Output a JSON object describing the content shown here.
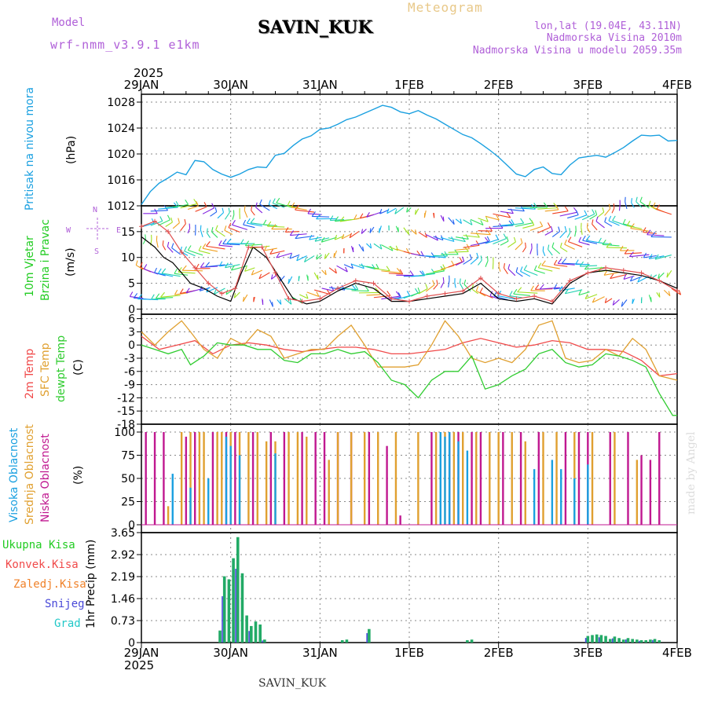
{
  "header": {
    "meteogram_label": "Meteogram",
    "station": "SAVIN_KUK",
    "model_caption": "Model",
    "model_name": "wrf-nmm_v3.9.1 e1km",
    "lonlat": "lon,lat (19.04E, 43.11N)",
    "elevation": "Nadmorska Visina 2010m",
    "model_elevation": "Nadmorska Visina u modelu 2059.35m",
    "footer_station": "SAVIN_KUK",
    "watermark": "made by Angel"
  },
  "time_axis": {
    "year": "2025",
    "ticks": [
      "29JAN",
      "30JAN",
      "31JAN",
      "1FEB",
      "2FEB",
      "3FEB",
      "4FEB"
    ]
  },
  "panel_labels": {
    "pressure": {
      "name": "Pritisak na nivou mora",
      "unit": "(hPa)"
    },
    "wind": {
      "line1": "10m Vjetar",
      "line2": "Brzina i Pravac",
      "unit": "(m/s)",
      "compass": [
        "N",
        "E",
        "S",
        "W"
      ]
    },
    "temp": {
      "t2m": "2m Temp",
      "sfc": "SFC Temp",
      "dew": "dewpt Temp",
      "unit": "(C)"
    },
    "cloud": {
      "high": "Visoka Oblacnost",
      "mid": "Srednja Oblacnost",
      "low": "Niska Oblacnost",
      "unit": "(%)"
    },
    "precip": {
      "total": "Ukupna Kisa",
      "conv": "Konvek.Kisa",
      "frozen": "Zaledj.Kisa",
      "snow": "Snijeg",
      "graupel": "Grad",
      "unit": "1hr Precip (mm)"
    }
  },
  "colors": {
    "pressure": "#1aa0e0",
    "t2m": "#f04a4a",
    "sfc": "#e0a030",
    "dew": "#30cc30",
    "high_cloud": "#1aa0e0",
    "mid_cloud": "#e0a030",
    "low_cloud": "#c01890",
    "wind_speed": "#000000",
    "wind_gust": "#e05050",
    "label_purple": "#b060d8",
    "green": "#22cc22",
    "red": "#f04a4a",
    "orange": "#f0822a",
    "blue": "#4848d8",
    "cyan": "#22c8c8"
  },
  "chart_data": [
    {
      "type": "line",
      "name": "pressure",
      "ylabel": "(hPa)",
      "ylim": [
        1012,
        1028
      ],
      "yticks": [
        "1012",
        "1016",
        "1020",
        "1024",
        "1028"
      ],
      "grid": true,
      "x_days": [
        0,
        0.1,
        0.2,
        0.3,
        0.4,
        0.5,
        0.6,
        0.7,
        0.8,
        0.9,
        1.0,
        1.1,
        1.2,
        1.3,
        1.4,
        1.5,
        1.6,
        1.7,
        1.8,
        1.9,
        2.0,
        2.1,
        2.2,
        2.3,
        2.4,
        2.5,
        2.6,
        2.7,
        2.8,
        2.9,
        3.0,
        3.1,
        3.2,
        3.3,
        3.4,
        3.5,
        3.6,
        3.7,
        3.8,
        3.9,
        4.0,
        4.1,
        4.2,
        4.3,
        4.4,
        4.5,
        4.6,
        4.7,
        4.8,
        4.9,
        5.0,
        5.1,
        5.2,
        5.3,
        5.4,
        5.5,
        5.6,
        5.7,
        5.8,
        5.9,
        6.0
      ],
      "values": [
        1012.2,
        1014.2,
        1015.5,
        1016.3,
        1017.2,
        1016.8,
        1019.0,
        1018.8,
        1017.6,
        1016.9,
        1016.4,
        1016.9,
        1017.6,
        1018.0,
        1017.9,
        1019.8,
        1020.1,
        1021.3,
        1022.3,
        1022.8,
        1023.8,
        1024.0,
        1024.6,
        1025.3,
        1025.7,
        1026.3,
        1026.9,
        1027.5,
        1027.2,
        1026.5,
        1026.2,
        1026.7,
        1026.0,
        1025.4,
        1024.6,
        1023.8,
        1023.0,
        1022.5,
        1021.6,
        1020.6,
        1019.5,
        1018.2,
        1016.9,
        1016.5,
        1017.6,
        1018.0,
        1017.0,
        1016.8,
        1018.3,
        1019.4,
        1019.6,
        1019.8,
        1019.5,
        1020.2,
        1021.0,
        1022.0,
        1022.9,
        1022.8,
        1022.9,
        1022.0,
        1022.1
      ]
    },
    {
      "type": "line",
      "name": "wind",
      "ylabel": "(m/s)",
      "ylim": [
        -1,
        20
      ],
      "yticks": [
        "0",
        "5",
        "10",
        "15"
      ],
      "series": [
        {
          "key": "wind_speed",
          "color": "#000000",
          "x_days": [
            0,
            0.15,
            0.25,
            0.35,
            0.45,
            0.55,
            0.7,
            0.85,
            1.0,
            1.12,
            1.25,
            1.4,
            1.55,
            1.7,
            1.85,
            2.0,
            2.2,
            2.4,
            2.6,
            2.8,
            3.0,
            3.2,
            3.4,
            3.6,
            3.8,
            4.0,
            4.2,
            4.4,
            4.6,
            4.8,
            5.0,
            5.2,
            5.4,
            5.6,
            5.8,
            6.0
          ],
          "values": [
            14,
            12,
            10,
            9,
            7,
            5,
            4,
            2.5,
            1.5,
            7,
            12,
            10,
            6,
            2,
            1,
            1.5,
            3.5,
            5,
            4,
            1.5,
            1.5,
            2,
            2.5,
            3,
            5,
            2,
            1.5,
            2,
            1,
            5,
            7,
            7.5,
            7,
            6.5,
            5.5,
            4
          ]
        },
        {
          "key": "wind_gust",
          "color": "#e05050",
          "x_days": [
            0,
            0.15,
            0.3,
            0.45,
            0.6,
            0.75,
            0.9,
            1.05,
            1.2,
            1.35,
            1.5,
            1.65,
            1.8,
            2.0,
            2.2,
            2.4,
            2.6,
            2.8,
            3.0,
            3.2,
            3.4,
            3.6,
            3.8,
            4.0,
            4.2,
            4.4,
            4.6,
            4.8,
            5.0,
            5.2,
            5.4,
            5.6,
            5.8,
            6.0
          ],
          "values": [
            16,
            17,
            15,
            11,
            8,
            5,
            3,
            4,
            12,
            12,
            7,
            2,
            1.5,
            2,
            4,
            5.5,
            5,
            2,
            1.5,
            2.5,
            3,
            3.5,
            6,
            3,
            2,
            2.5,
            1.5,
            5.5,
            7,
            8,
            7.5,
            7,
            5.5,
            3.5
          ]
        }
      ]
    },
    {
      "type": "line",
      "name": "temperature",
      "ylabel": "(C)",
      "ylim": [
        -18,
        7
      ],
      "yticks": [
        "-18",
        "-15",
        "-12",
        "-9",
        "-6",
        "-3",
        "0",
        "3",
        "6"
      ],
      "series": [
        {
          "key": "t2m",
          "color": "#f04a4a",
          "x_days": [
            0,
            0.2,
            0.4,
            0.6,
            0.8,
            1.0,
            1.2,
            1.4,
            1.6,
            1.8,
            2.0,
            2.2,
            2.4,
            2.6,
            2.8,
            3.0,
            3.2,
            3.4,
            3.6,
            3.8,
            4.0,
            4.2,
            4.4,
            4.6,
            4.8,
            5.0,
            5.2,
            5.4,
            5.6,
            5.8,
            6.0
          ],
          "values": [
            2,
            -1,
            0,
            1,
            -2,
            0,
            0.5,
            0,
            -1,
            -1.5,
            -1,
            -0.5,
            -0.5,
            -1,
            -2,
            -2,
            -1.5,
            -1,
            0.5,
            1.5,
            0.5,
            -0.5,
            0,
            1,
            0.5,
            -1,
            -1,
            -1.5,
            -3.5,
            -7,
            -6.5
          ]
        },
        {
          "key": "sfc",
          "color": "#e0a030",
          "x_days": [
            0,
            0.15,
            0.3,
            0.45,
            0.55,
            0.7,
            0.85,
            1.0,
            1.15,
            1.3,
            1.45,
            1.6,
            1.75,
            1.9,
            2.05,
            2.2,
            2.35,
            2.5,
            2.65,
            2.8,
            2.95,
            3.1,
            3.25,
            3.4,
            3.55,
            3.7,
            3.85,
            4.0,
            4.15,
            4.3,
            4.45,
            4.6,
            4.75,
            4.9,
            5.05,
            5.2,
            5.35,
            5.5,
            5.65,
            5.8,
            6.0
          ],
          "values": [
            3,
            0,
            3,
            5.5,
            3,
            -1,
            -3,
            1.5,
            0,
            3.5,
            2,
            -3,
            -2,
            -1,
            -1,
            2,
            4.5,
            0,
            -5,
            -5,
            -5,
            -4.5,
            0,
            5.5,
            2,
            -3,
            -4,
            -3,
            -4,
            -1,
            4.5,
            5.5,
            -3,
            -4,
            -3.5,
            -1,
            -2.5,
            1.5,
            -1,
            -7,
            -8
          ]
        },
        {
          "key": "dew",
          "color": "#30cc30",
          "x_days": [
            0,
            0.15,
            0.3,
            0.45,
            0.55,
            0.7,
            0.85,
            1.0,
            1.15,
            1.3,
            1.45,
            1.6,
            1.75,
            1.9,
            2.05,
            2.2,
            2.35,
            2.5,
            2.65,
            2.8,
            2.95,
            3.1,
            3.25,
            3.4,
            3.55,
            3.7,
            3.85,
            4.0,
            4.15,
            4.3,
            4.45,
            4.6,
            4.75,
            4.9,
            5.05,
            5.2,
            5.35,
            5.5,
            5.65,
            5.8,
            5.95,
            6.0
          ],
          "values": [
            0,
            -1,
            -2,
            -1,
            -4.5,
            -2.5,
            0.5,
            0,
            0,
            -1,
            -1,
            -3.5,
            -4,
            -2,
            -2,
            -1,
            -2,
            -1.5,
            -4,
            -8,
            -9,
            -12,
            -8,
            -6,
            -6,
            -2.5,
            -10,
            -9,
            -7,
            -5.5,
            -2,
            -1,
            -4,
            -5,
            -4.5,
            -2,
            -2.5,
            -3.5,
            -5,
            -11,
            -16,
            -16
          ]
        }
      ]
    },
    {
      "type": "bar",
      "name": "cloud_cover",
      "ylabel": "(%)",
      "ylim": [
        0,
        100
      ],
      "yticks": [
        "0",
        "25",
        "50",
        "75",
        "100"
      ],
      "series": [
        {
          "key": "low_cloud",
          "color": "#c01890",
          "x_days": [
            0.05,
            0.15,
            0.25,
            0.5,
            0.6,
            0.8,
            0.95,
            1.05,
            1.25,
            1.45,
            1.6,
            1.8,
            1.95,
            2.05,
            2.2,
            2.35,
            2.55,
            2.75,
            2.9,
            3.25,
            3.45,
            3.55,
            3.7,
            3.8,
            4.05,
            4.25,
            4.45,
            4.75,
            4.9,
            5.0,
            5.25,
            5.45,
            5.6,
            5.7,
            5.8
          ],
          "values": [
            100,
            100,
            100,
            95,
            100,
            100,
            100,
            100,
            100,
            100,
            100,
            100,
            100,
            100,
            100,
            100,
            100,
            85,
            10,
            100,
            100,
            100,
            100,
            100,
            100,
            100,
            100,
            100,
            100,
            100,
            100,
            100,
            75,
            70,
            100
          ]
        },
        {
          "key": "mid_cloud",
          "color": "#e0a030",
          "x_days": [
            0.3,
            0.45,
            0.55,
            0.65,
            0.7,
            0.85,
            0.9,
            1.0,
            1.1,
            1.2,
            1.3,
            1.4,
            1.5,
            1.65,
            1.75,
            1.85,
            2.1,
            2.2,
            2.35,
            2.5,
            2.65,
            2.85,
            3.1,
            3.3,
            3.4,
            3.5,
            3.6,
            3.75,
            3.9,
            4.0,
            4.15,
            4.3,
            4.5,
            4.65,
            4.85,
            5.05,
            5.3,
            5.55
          ],
          "values": [
            20,
            100,
            100,
            100,
            100,
            100,
            100,
            100,
            100,
            100,
            100,
            90,
            90,
            100,
            100,
            95,
            70,
            100,
            100,
            100,
            100,
            100,
            100,
            100,
            100,
            100,
            100,
            100,
            100,
            100,
            100,
            90,
            100,
            100,
            100,
            100,
            100,
            70
          ]
        },
        {
          "key": "high_cloud",
          "color": "#1aa0e0",
          "x_days": [
            0.35,
            0.55,
            0.75,
            0.95,
            1.0,
            1.1,
            1.5,
            3.35,
            3.4,
            3.45,
            3.55,
            3.65,
            4.4,
            4.6,
            4.7,
            4.85,
            5.0
          ],
          "values": [
            55,
            40,
            50,
            95,
            85,
            75,
            77,
            100,
            95,
            100,
            90,
            80,
            60,
            70,
            60,
            50,
            65
          ]
        }
      ]
    },
    {
      "type": "bar",
      "name": "precipitation",
      "ylabel": "1hr Precip (mm)",
      "ylim": [
        0,
        3.65
      ],
      "yticks": [
        "0",
        "0.73",
        "1.46",
        "2.19",
        "2.92",
        "3.65"
      ],
      "series": [
        {
          "key": "total",
          "color": "#22aa66",
          "x_days": [
            0.88,
            0.93,
            0.98,
            1.03,
            1.08,
            1.13,
            1.18,
            1.23,
            1.28,
            1.33,
            1.38,
            2.25,
            2.3,
            2.55,
            3.65,
            3.7,
            5.0,
            5.05,
            5.1,
            5.15,
            5.2,
            5.25,
            5.3,
            5.35,
            5.4,
            5.45,
            5.5,
            5.55,
            5.6,
            5.65,
            5.7,
            5.75,
            5.8
          ],
          "values": [
            0.4,
            2.2,
            2.1,
            2.8,
            3.5,
            2.3,
            0.9,
            0.55,
            0.7,
            0.6,
            0.1,
            0.08,
            0.1,
            0.45,
            0.08,
            0.1,
            0.22,
            0.25,
            0.27,
            0.25,
            0.22,
            0.12,
            0.2,
            0.15,
            0.1,
            0.15,
            0.12,
            0.1,
            0.08,
            0.08,
            0.1,
            0.12,
            0.08
          ]
        }
      ]
    },
    {
      "type": "bar",
      "name": "wind_barbs",
      "colors": [
        "#8020e0",
        "#2060f0",
        "#10b0f0",
        "#20d0b0",
        "#30e060",
        "#a0e020",
        "#f0a020",
        "#f04020"
      ],
      "note": "field of coloured wind barbs at five heights"
    }
  ]
}
